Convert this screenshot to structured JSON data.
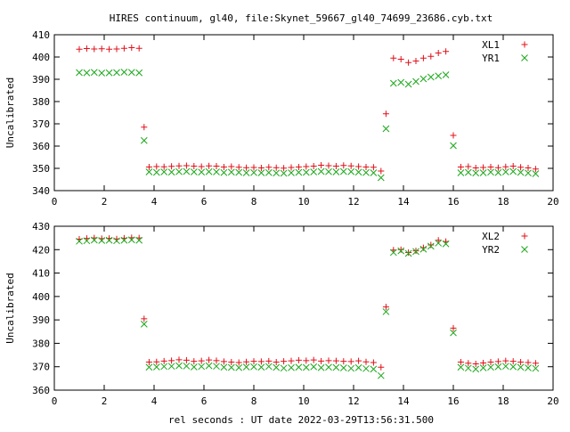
{
  "page": {
    "title": "HIRES continuum, gl40, file:Skynet_59667_gl40_74699_23686.cyb.txt",
    "xlabel": "rel seconds : UT date 2022-03-29T13:56:31.500"
  },
  "colors": {
    "red": "#e0101a",
    "green": "#1aa81a",
    "axis": "#000000"
  },
  "chart_data": [
    {
      "type": "scatter",
      "ylabel": "Uncalibrated",
      "xlim": [
        0,
        20
      ],
      "ylim": [
        340,
        410
      ],
      "xticks": [
        0,
        2,
        4,
        6,
        8,
        10,
        12,
        14,
        16,
        18,
        20
      ],
      "yticks": [
        340,
        350,
        360,
        370,
        380,
        390,
        400,
        410
      ],
      "legend": "top-right",
      "x": [
        1.0,
        1.3,
        1.6,
        1.9,
        2.2,
        2.5,
        2.8,
        3.1,
        3.4,
        3.6,
        3.8,
        4.1,
        4.4,
        4.7,
        5.0,
        5.3,
        5.6,
        5.9,
        6.2,
        6.5,
        6.8,
        7.1,
        7.4,
        7.7,
        8.0,
        8.3,
        8.6,
        8.9,
        9.2,
        9.5,
        9.8,
        10.1,
        10.4,
        10.7,
        11.0,
        11.3,
        11.6,
        11.9,
        12.2,
        12.5,
        12.8,
        13.1,
        13.3,
        13.6,
        13.9,
        14.2,
        14.5,
        14.8,
        15.1,
        15.4,
        15.7,
        16.0,
        16.3,
        16.6,
        16.9,
        17.2,
        17.5,
        17.8,
        18.1,
        18.4,
        18.7,
        19.0,
        19.3
      ],
      "series": [
        {
          "name": "XL1",
          "marker": "plus",
          "color": "#e0101a",
          "values": [
            403.5,
            403.8,
            403.6,
            403.7,
            403.5,
            403.6,
            403.9,
            404.2,
            403.9,
            368.5,
            350.6,
            350.8,
            350.7,
            350.9,
            351.1,
            351.2,
            351.0,
            350.8,
            351.1,
            351.0,
            350.6,
            350.8,
            350.5,
            350.3,
            350.4,
            350.2,
            350.5,
            350.3,
            350.1,
            350.4,
            350.6,
            350.8,
            351.0,
            351.4,
            351.2,
            351.0,
            351.3,
            351.1,
            350.8,
            350.6,
            350.5,
            348.8,
            374.5,
            399.5,
            399.0,
            397.5,
            398.2,
            399.5,
            400.3,
            401.8,
            402.5,
            364.8,
            350.6,
            350.8,
            350.2,
            350.4,
            350.6,
            350.3,
            350.7,
            351.0,
            350.5,
            350.2,
            349.7
          ]
        },
        {
          "name": "YR1",
          "marker": "cross",
          "color": "#1aa81a",
          "values": [
            393.0,
            392.9,
            393.1,
            392.8,
            392.9,
            393.0,
            393.2,
            393.1,
            392.9,
            362.5,
            348.4,
            348.2,
            348.4,
            348.3,
            348.5,
            348.6,
            348.4,
            348.3,
            348.5,
            348.4,
            348.1,
            348.3,
            348.2,
            348.0,
            348.1,
            348.0,
            348.1,
            347.9,
            347.8,
            348.0,
            348.2,
            348.2,
            348.4,
            348.6,
            348.5,
            348.4,
            348.6,
            348.5,
            348.3,
            348.1,
            348.0,
            345.8,
            367.8,
            388.2,
            388.6,
            387.8,
            389.0,
            390.2,
            391.0,
            391.5,
            392.0,
            360.2,
            348.0,
            348.2,
            347.9,
            348.0,
            348.3,
            348.1,
            348.4,
            348.6,
            348.2,
            347.9,
            347.6
          ]
        }
      ]
    },
    {
      "type": "scatter",
      "ylabel": "Uncalibrated",
      "xlim": [
        0,
        20
      ],
      "ylim": [
        360,
        430
      ],
      "xticks": [
        0,
        2,
        4,
        6,
        8,
        10,
        12,
        14,
        16,
        18,
        20
      ],
      "yticks": [
        360,
        370,
        380,
        390,
        400,
        410,
        420,
        430
      ],
      "legend": "top-right",
      "x": [
        1.0,
        1.3,
        1.6,
        1.9,
        2.2,
        2.5,
        2.8,
        3.1,
        3.4,
        3.6,
        3.8,
        4.1,
        4.4,
        4.7,
        5.0,
        5.3,
        5.6,
        5.9,
        6.2,
        6.5,
        6.8,
        7.1,
        7.4,
        7.7,
        8.0,
        8.3,
        8.6,
        8.9,
        9.2,
        9.5,
        9.8,
        10.1,
        10.4,
        10.7,
        11.0,
        11.3,
        11.6,
        11.9,
        12.2,
        12.5,
        12.8,
        13.1,
        13.3,
        13.6,
        13.9,
        14.2,
        14.5,
        14.8,
        15.1,
        15.4,
        15.7,
        16.0,
        16.3,
        16.6,
        16.9,
        17.2,
        17.5,
        17.8,
        18.1,
        18.4,
        18.7,
        19.0,
        19.3
      ],
      "series": [
        {
          "name": "XL2",
          "marker": "plus",
          "color": "#e0101a",
          "values": [
            424.5,
            424.8,
            425.0,
            424.7,
            424.8,
            424.6,
            424.9,
            425.1,
            425.0,
            390.5,
            372.0,
            372.1,
            372.4,
            372.6,
            373.0,
            372.8,
            372.3,
            372.5,
            372.9,
            372.6,
            372.2,
            372.0,
            371.8,
            372.1,
            372.3,
            372.2,
            372.4,
            372.0,
            372.3,
            372.5,
            372.8,
            372.6,
            372.9,
            372.4,
            372.6,
            372.5,
            372.3,
            372.2,
            372.5,
            372.1,
            371.8,
            369.8,
            395.5,
            419.8,
            420.0,
            418.8,
            419.5,
            420.8,
            422.0,
            424.0,
            423.5,
            386.5,
            372.0,
            371.5,
            371.2,
            371.6,
            372.0,
            372.2,
            372.5,
            372.3,
            372.0,
            371.8,
            371.5
          ]
        },
        {
          "name": "YR2",
          "marker": "cross",
          "color": "#1aa81a",
          "values": [
            423.6,
            423.8,
            424.1,
            423.9,
            424.0,
            423.8,
            424.0,
            424.2,
            424.0,
            388.2,
            369.8,
            369.9,
            370.1,
            370.2,
            370.4,
            370.3,
            369.9,
            370.1,
            370.4,
            370.2,
            369.8,
            369.7,
            369.6,
            369.9,
            370.0,
            369.8,
            370.1,
            369.7,
            369.4,
            369.6,
            369.8,
            369.7,
            370.0,
            369.6,
            369.8,
            369.7,
            369.5,
            369.3,
            369.6,
            369.2,
            369.0,
            366.2,
            393.5,
            418.8,
            419.5,
            418.4,
            419.2,
            420.2,
            421.5,
            422.8,
            422.5,
            384.5,
            369.8,
            369.4,
            369.0,
            369.5,
            369.8,
            370.0,
            370.2,
            370.0,
            369.8,
            369.5,
            369.3
          ]
        }
      ]
    }
  ]
}
